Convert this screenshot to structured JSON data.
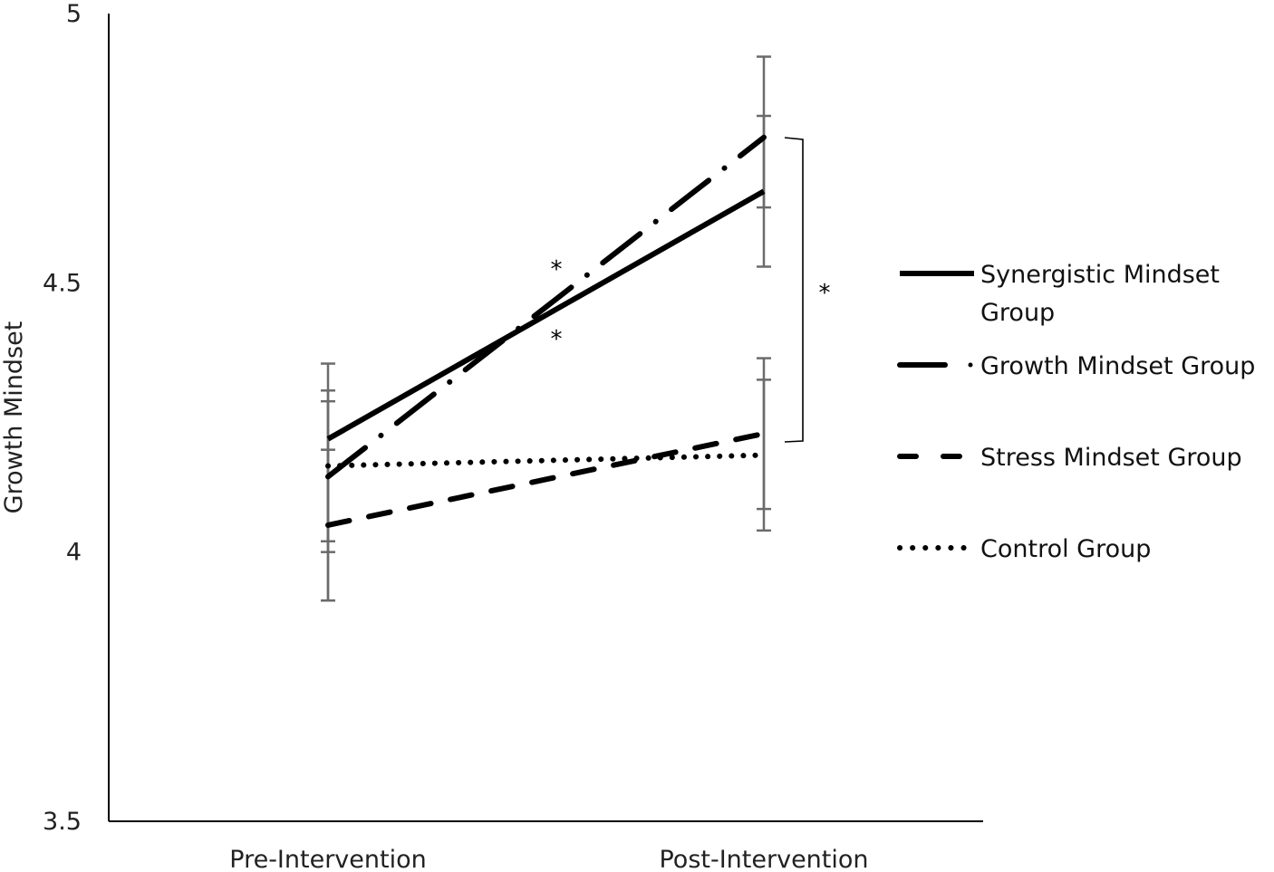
{
  "chart_data": {
    "type": "line",
    "title": "",
    "xlabel": "",
    "ylabel": "Growth Mindset",
    "ylim": [
      3.5,
      5
    ],
    "yticks": [
      "3.5",
      "4",
      "4.5",
      "5"
    ],
    "categories": [
      "Pre-Intervention",
      "Post-Intervention"
    ],
    "legend_position": "right",
    "series": [
      {
        "name": "Synergistic Mindset Group",
        "name_lines": [
          "Synergistic Mindset",
          "Group"
        ],
        "style": "solid",
        "values": [
          4.21,
          4.67
        ],
        "error_low": [
          3.91,
          4.53
        ],
        "error_high": [
          4.35,
          4.81
        ]
      },
      {
        "name": "Growth Mindset Group",
        "name_lines": [
          "Growth Mindset Group"
        ],
        "style": "dash-dot",
        "values": [
          4.14,
          4.77
        ],
        "error_low": [
          4.0,
          4.64
        ],
        "error_high": [
          4.3,
          4.92
        ]
      },
      {
        "name": "Stress Mindset Group",
        "name_lines": [
          "Stress Mindset Group"
        ],
        "style": "dashed",
        "values": [
          4.05,
          4.22
        ],
        "error_low": [
          3.91,
          4.04
        ],
        "error_high": [
          4.19,
          4.36
        ]
      },
      {
        "name": "Control Group",
        "name_lines": [
          "Control Group"
        ],
        "style": "dotted",
        "values": [
          4.16,
          4.18
        ],
        "error_low": [
          4.02,
          4.08
        ],
        "error_high": [
          4.28,
          4.32
        ]
      }
    ],
    "annotations": [
      {
        "text": "*",
        "note": "between growth and synergistic lines (upper)"
      },
      {
        "text": "*",
        "note": "between growth and synergistic lines (lower)"
      },
      {
        "text": "*",
        "note": "bracket comparing post-intervention groups"
      }
    ]
  }
}
